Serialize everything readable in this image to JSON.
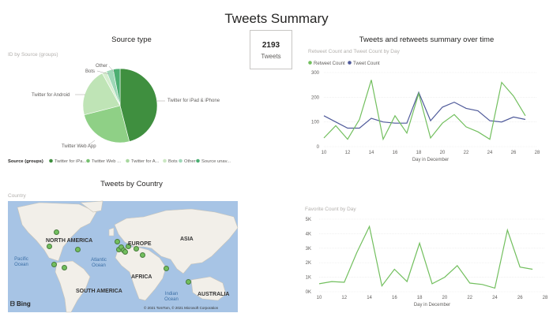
{
  "page_title": "Tweets Summary",
  "pie": {
    "title": "Source type",
    "subtitle": "ID by Source (groups)",
    "legend_title": "Source (groups)",
    "legend": [
      {
        "label": "Twitter for iPa...",
        "color": "#3f8f3f"
      },
      {
        "label": "Twitter Web ...",
        "color": "#77c071"
      },
      {
        "label": "Twitter for A...",
        "color": "#a8d8a0"
      },
      {
        "label": "Bots",
        "color": "#cbe8c3"
      },
      {
        "label": "Other",
        "color": "#9fd8b8"
      },
      {
        "label": "Source unav...",
        "color": "#4caf73"
      }
    ],
    "callouts": [
      "Twitter for iPad & iPhone",
      "Twitter Web App",
      "Twitter for Android",
      "Bots",
      "Other"
    ]
  },
  "card": {
    "value": "2193",
    "label": "Tweets"
  },
  "line_chart": {
    "title": "Tweets and retweets summary over time",
    "subtitle": "Retweet Count and Tweet Count by Day",
    "legend": [
      {
        "label": "Retweet Count",
        "color": "#72bf5e"
      },
      {
        "label": "Tweet Count",
        "color": "#4f5a9a"
      }
    ],
    "x_label": "Day in December",
    "x_ticks": [
      "10",
      "12",
      "14",
      "16",
      "18",
      "20",
      "22",
      "24",
      "26",
      "28"
    ],
    "y_ticks": [
      "0",
      "100",
      "200",
      "300"
    ]
  },
  "map": {
    "title": "Tweets by Country",
    "subtitle": "Country",
    "labels": [
      "NORTH AMERICA",
      "EUROPE",
      "ASIA",
      "Pacific Ocean",
      "Atlantic Ocean",
      "AFRICA",
      "SOUTH AMERICA",
      "Indian Ocean",
      "AUSTRALIA"
    ],
    "logo": "Bing",
    "copyright": "© 2021 TomTom, © 2021 Microsoft Corporation"
  },
  "fav_chart": {
    "subtitle": "Favorite Count by Day",
    "x_label": "Day in December",
    "x_ticks": [
      "10",
      "12",
      "14",
      "16",
      "18",
      "20",
      "22",
      "24",
      "26",
      "28"
    ],
    "y_ticks": [
      "0K",
      "1K",
      "2K",
      "3K",
      "4K",
      "5K"
    ]
  },
  "chart_data": [
    {
      "type": "pie",
      "title": "Source type",
      "categories": [
        "Twitter for iPad & iPhone",
        "Twitter Web App",
        "Twitter for Android",
        "Bots",
        "Other",
        "Source unavailable"
      ],
      "values": [
        46,
        25,
        21,
        2,
        3,
        3
      ],
      "colors": [
        "#3f8f3f",
        "#8fd086",
        "#bfe4b6",
        "#d6eecf",
        "#9fd8b8",
        "#4caf73"
      ]
    },
    {
      "type": "line",
      "title": "Tweets and retweets summary over time",
      "x": [
        10,
        11,
        12,
        13,
        14,
        15,
        16,
        17,
        18,
        19,
        20,
        21,
        22,
        23,
        24,
        25,
        26,
        27
      ],
      "xlim": [
        10,
        28
      ],
      "ylim": [
        0,
        300
      ],
      "xlabel": "Day in December",
      "series": [
        {
          "name": "Retweet Count",
          "color": "#72bf5e",
          "values": [
            35,
            85,
            30,
            110,
            270,
            30,
            125,
            55,
            215,
            35,
            95,
            130,
            80,
            60,
            30,
            260,
            205,
            125
          ]
        },
        {
          "name": "Tweet Count",
          "color": "#4f5a9a",
          "values": [
            125,
            100,
            75,
            75,
            115,
            100,
            95,
            95,
            220,
            105,
            160,
            180,
            155,
            145,
            105,
            100,
            120,
            110
          ]
        }
      ]
    },
    {
      "type": "line",
      "title": "Favorite Count by Day",
      "x": [
        10,
        11,
        12,
        13,
        14,
        15,
        16,
        17,
        18,
        19,
        20,
        21,
        22,
        23,
        24,
        25,
        26,
        27
      ],
      "xlim": [
        10,
        28
      ],
      "ylim": [
        0,
        5000
      ],
      "xlabel": "Day in December",
      "series": [
        {
          "name": "Favorite Count",
          "color": "#72bf5e",
          "values": [
            550,
            700,
            650,
            2700,
            4500,
            400,
            1550,
            700,
            3350,
            550,
            1000,
            1800,
            600,
            500,
            250,
            4250,
            1700,
            1550
          ]
        }
      ]
    }
  ]
}
